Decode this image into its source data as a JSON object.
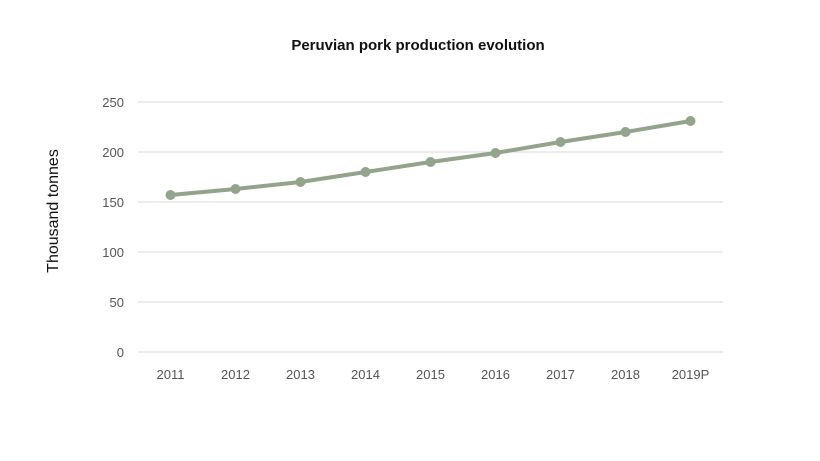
{
  "chart_data": {
    "type": "line",
    "title": "Peruvian pork production evolution",
    "xlabel": "",
    "ylabel": "Thousand tonnes",
    "categories": [
      "2011",
      "2012",
      "2013",
      "2014",
      "2015",
      "2016",
      "2017",
      "2018",
      "2019P"
    ],
    "series": [
      {
        "values": [
          157,
          163,
          170,
          180,
          190,
          199,
          210,
          220,
          231
        ]
      }
    ],
    "ylim": [
      0,
      250
    ],
    "yticks": [
      "0",
      "50",
      "100",
      "150",
      "200",
      "250"
    ],
    "grid": true,
    "legend": "none",
    "line_color": "#93a38c"
  }
}
